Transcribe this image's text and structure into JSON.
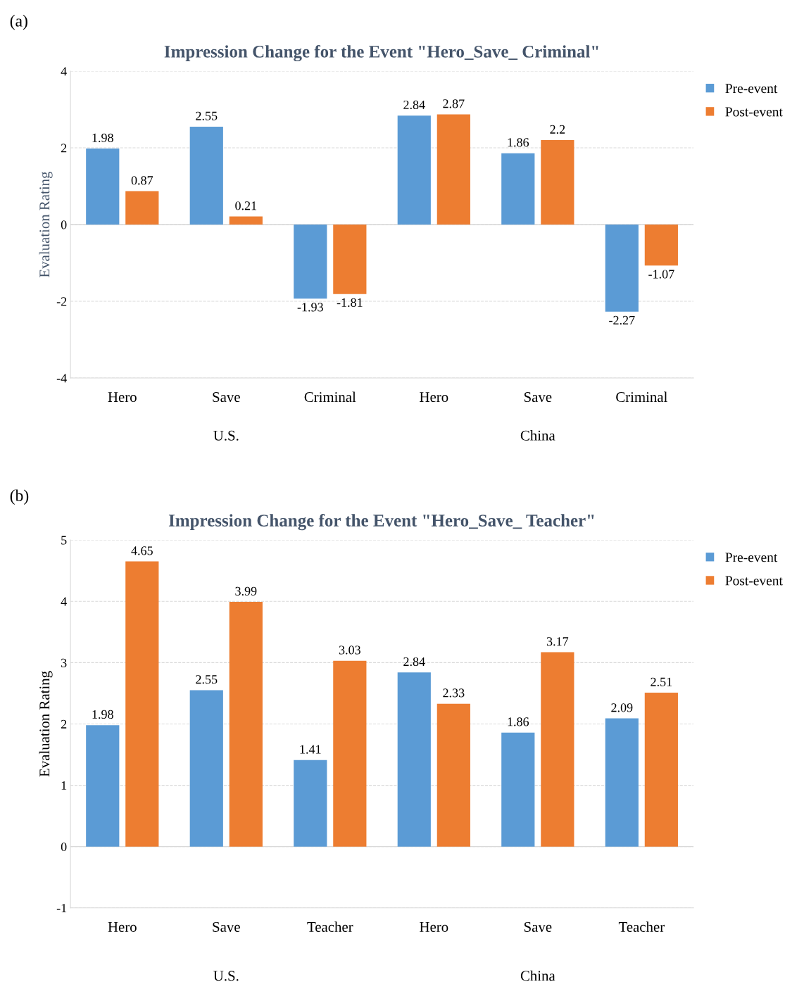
{
  "chart_data": [
    {
      "type": "bar",
      "title": "Impression Change for the Event \"Hero_Save_ Criminal\"",
      "ylabel": "Evaluation Rating",
      "categories": [
        "Hero",
        "Save",
        "Criminal",
        "Hero",
        "Save",
        "Criminal"
      ],
      "series": [
        {
          "name": "Pre-event",
          "color": "#5b9bd5",
          "values": [
            1.98,
            2.55,
            -1.93,
            2.84,
            1.86,
            -2.27
          ]
        },
        {
          "name": "Post-event",
          "color": "#ed7d31",
          "values": [
            0.87,
            0.21,
            -1.81,
            2.87,
            2.2,
            -1.07
          ]
        }
      ],
      "ylim": [
        -4,
        4
      ],
      "yticks": [
        -4,
        -2,
        0,
        2,
        4
      ],
      "grid": "y",
      "legend": "top right",
      "data_labels": true,
      "annotations": [
        "(a)",
        "U.S.",
        "China"
      ]
    },
    {
      "type": "bar",
      "title": "Impression Change for the Event \"Hero_Save_ Teacher\"",
      "ylabel": "Evaluation Rating",
      "categories": [
        "Hero",
        "Save",
        "Teacher",
        "Hero",
        "Save",
        "Teacher"
      ],
      "series": [
        {
          "name": "Pre-event",
          "color": "#5b9bd5",
          "values": [
            1.98,
            2.55,
            1.41,
            2.84,
            1.86,
            2.09
          ]
        },
        {
          "name": "Post-event",
          "color": "#ed7d31",
          "values": [
            4.65,
            3.99,
            3.03,
            2.33,
            3.17,
            2.51
          ]
        }
      ],
      "ylim": [
        -1,
        5
      ],
      "yticks": [
        -1,
        0,
        1,
        2,
        3,
        4,
        5
      ],
      "grid": "y",
      "legend": "top right",
      "data_labels": true,
      "annotations": [
        "(b)",
        "U.S.",
        "China"
      ]
    }
  ]
}
